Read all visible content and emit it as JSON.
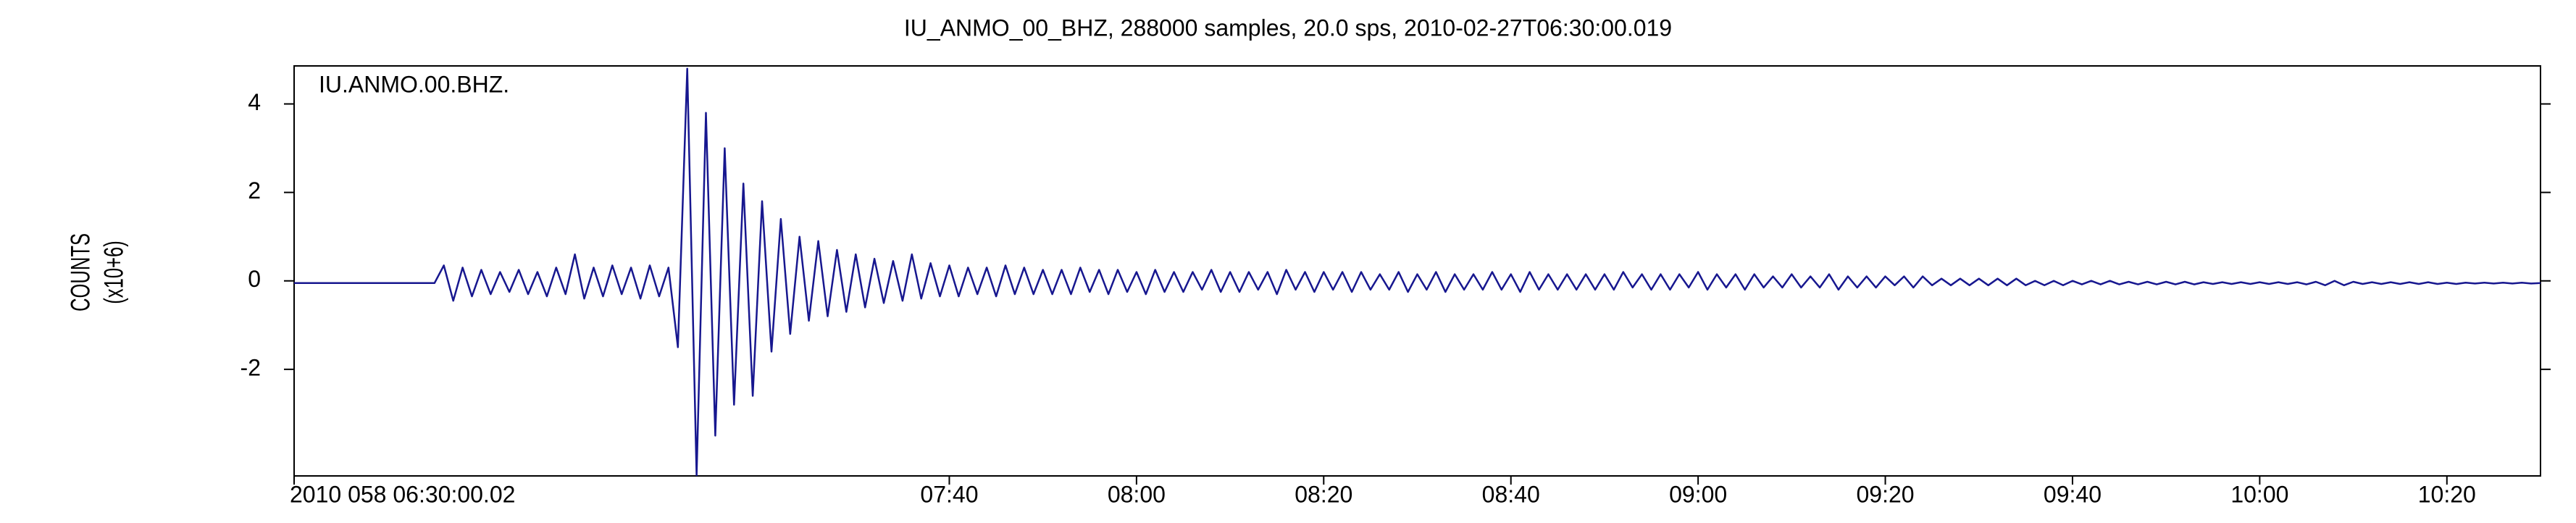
{
  "chart_data": {
    "type": "line",
    "title": "IU_ANMO_00_BHZ, 288000 samples, 20.0 sps, 2010-02-27T06:30:00.019",
    "trace_label": "IU.ANMO.00.BHZ.",
    "ylabel": "COUNTS",
    "ylabel_unit": "(x10+6)",
    "xlim": [
      0,
      240
    ],
    "xticks": [
      {
        "value": 0,
        "label": "2010 058 06:30:00.02"
      },
      {
        "value": 70,
        "label": "07:40"
      },
      {
        "value": 90,
        "label": "08:00"
      },
      {
        "value": 110,
        "label": "08:20"
      },
      {
        "value": 130,
        "label": "08:40"
      },
      {
        "value": 150,
        "label": "09:00"
      },
      {
        "value": 170,
        "label": "09:20"
      },
      {
        "value": 190,
        "label": "09:40"
      },
      {
        "value": 210,
        "label": "10:00"
      },
      {
        "value": 230,
        "label": "10:20"
      }
    ],
    "ylim": [
      -4.41,
      4.86
    ],
    "yticks": [
      -2,
      0,
      2,
      4
    ],
    "color": "#17178f",
    "x": [
      0,
      15,
      16,
      17,
      18,
      19,
      20,
      21,
      22,
      23,
      24,
      25,
      26,
      27,
      28,
      29,
      30,
      31,
      32,
      33,
      34,
      35,
      36,
      37,
      38,
      39,
      40,
      41,
      42,
      43,
      44,
      45,
      46,
      47,
      48,
      49,
      50,
      51,
      52,
      53,
      54,
      55,
      56,
      57,
      58,
      59,
      60,
      61,
      62,
      63,
      64,
      65,
      66,
      67,
      68,
      69,
      70,
      71,
      72,
      73,
      74,
      75,
      76,
      77,
      78,
      79,
      80,
      81,
      82,
      83,
      84,
      85,
      86,
      87,
      88,
      89,
      90,
      91,
      92,
      93,
      94,
      95,
      96,
      97,
      98,
      99,
      100,
      101,
      102,
      103,
      104,
      105,
      106,
      107,
      108,
      109,
      110,
      111,
      112,
      113,
      114,
      115,
      116,
      117,
      118,
      119,
      120,
      121,
      122,
      123,
      124,
      125,
      126,
      127,
      128,
      129,
      130,
      131,
      132,
      133,
      134,
      135,
      136,
      137,
      138,
      139,
      140,
      141,
      142,
      143,
      144,
      145,
      146,
      147,
      148,
      149,
      150,
      151,
      152,
      153,
      154,
      155,
      156,
      157,
      158,
      159,
      160,
      161,
      162,
      163,
      164,
      165,
      166,
      167,
      168,
      169,
      170,
      171,
      172,
      173,
      174,
      175,
      176,
      177,
      178,
      179,
      180,
      181,
      182,
      183,
      184,
      185,
      186,
      187,
      188,
      189,
      190,
      191,
      192,
      193,
      194,
      195,
      196,
      197,
      198,
      199,
      200,
      201,
      202,
      203,
      204,
      205,
      206,
      207,
      208,
      209,
      210,
      211,
      212,
      213,
      214,
      215,
      216,
      217,
      218,
      219,
      220,
      221,
      222,
      223,
      224,
      225,
      226,
      227,
      228,
      229,
      230,
      231,
      232,
      233,
      234,
      235,
      236,
      237,
      238,
      239,
      240
    ],
    "values": [
      -0.05,
      -0.05,
      0.35,
      -0.45,
      0.3,
      -0.35,
      0.25,
      -0.3,
      0.2,
      -0.25,
      0.25,
      -0.3,
      0.2,
      -0.35,
      0.3,
      -0.3,
      0.6,
      -0.4,
      0.3,
      -0.35,
      0.35,
      -0.3,
      0.3,
      -0.4,
      0.35,
      -0.35,
      0.3,
      -1.5,
      4.8,
      -4.4,
      3.8,
      -3.5,
      3.0,
      -2.8,
      2.2,
      -2.6,
      1.8,
      -1.6,
      1.4,
      -1.2,
      1.0,
      -0.9,
      0.9,
      -0.8,
      0.7,
      -0.7,
      0.6,
      -0.6,
      0.5,
      -0.5,
      0.45,
      -0.45,
      0.6,
      -0.4,
      0.4,
      -0.35,
      0.35,
      -0.35,
      0.3,
      -0.3,
      0.3,
      -0.35,
      0.35,
      -0.3,
      0.3,
      -0.3,
      0.25,
      -0.3,
      0.25,
      -0.3,
      0.3,
      -0.25,
      0.25,
      -0.3,
      0.25,
      -0.25,
      0.2,
      -0.3,
      0.25,
      -0.25,
      0.2,
      -0.25,
      0.2,
      -0.2,
      0.25,
      -0.25,
      0.2,
      -0.25,
      0.2,
      -0.2,
      0.2,
      -0.3,
      0.25,
      -0.2,
      0.2,
      -0.25,
      0.2,
      -0.2,
      0.2,
      -0.25,
      0.2,
      -0.2,
      0.15,
      -0.2,
      0.2,
      -0.25,
      0.15,
      -0.2,
      0.2,
      -0.25,
      0.15,
      -0.2,
      0.15,
      -0.2,
      0.2,
      -0.2,
      0.15,
      -0.25,
      0.2,
      -0.2,
      0.15,
      -0.2,
      0.15,
      -0.2,
      0.15,
      -0.2,
      0.15,
      -0.2,
      0.2,
      -0.15,
      0.15,
      -0.2,
      0.15,
      -0.2,
      0.15,
      -0.15,
      0.2,
      -0.2,
      0.15,
      -0.15,
      0.15,
      -0.2,
      0.15,
      -0.15,
      0.1,
      -0.15,
      0.15,
      -0.15,
      0.1,
      -0.15,
      0.15,
      -0.2,
      0.1,
      -0.15,
      0.1,
      -0.15,
      0.1,
      -0.1,
      0.1,
      -0.15,
      0.1,
      -0.1,
      0.05,
      -0.1,
      0.05,
      -0.1,
      0.05,
      -0.1,
      0.05,
      -0.1,
      0.05,
      -0.1,
      0.0,
      -0.1,
      0.0,
      -0.1,
      0.0,
      -0.08,
      0.0,
      -0.08,
      0.0,
      -0.08,
      -0.02,
      -0.08,
      -0.02,
      -0.08,
      -0.02,
      -0.08,
      -0.02,
      -0.08,
      -0.03,
      -0.07,
      -0.03,
      -0.07,
      -0.03,
      -0.07,
      -0.03,
      -0.07,
      -0.03,
      -0.07,
      -0.03,
      -0.08,
      -0.02,
      -0.1,
      0.0,
      -0.1,
      -0.02,
      -0.07,
      -0.03,
      -0.07,
      -0.03,
      -0.07,
      -0.03,
      -0.07,
      -0.03,
      -0.07,
      -0.04,
      -0.07,
      -0.04,
      -0.06,
      -0.04,
      -0.06,
      -0.04,
      -0.06,
      -0.04,
      -0.06,
      -0.05
    ]
  }
}
